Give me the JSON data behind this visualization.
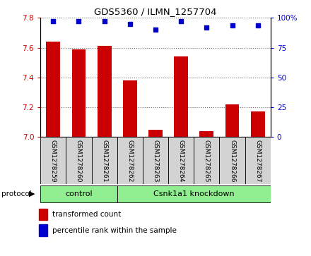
{
  "title": "GDS5360 / ILMN_1257704",
  "samples": [
    "GSM1278259",
    "GSM1278260",
    "GSM1278261",
    "GSM1278262",
    "GSM1278263",
    "GSM1278264",
    "GSM1278265",
    "GSM1278266",
    "GSM1278267"
  ],
  "transformed_counts": [
    7.64,
    7.59,
    7.61,
    7.38,
    7.05,
    7.54,
    7.04,
    7.22,
    7.17
  ],
  "percentile_ranks": [
    97,
    97,
    97,
    95,
    90,
    97,
    92,
    94,
    94
  ],
  "ylim_left": [
    7.0,
    7.8
  ],
  "ylim_right": [
    0,
    100
  ],
  "yticks_left": [
    7.0,
    7.2,
    7.4,
    7.6,
    7.8
  ],
  "yticks_right": [
    0,
    25,
    50,
    75,
    100
  ],
  "bar_color": "#cc0000",
  "scatter_color": "#0000cc",
  "bar_width": 0.55,
  "control_count": 3,
  "knockdown_count": 6,
  "legend_bar_label": "transformed count",
  "legend_scatter_label": "percentile rank within the sample",
  "left_tick_color": "#cc0000",
  "right_tick_color": "#0000cc",
  "grid_linestyle": ":",
  "sample_box_color": "#d3d3d3",
  "proto_color": "#90ee90",
  "control_label": "control",
  "knockdown_label": "Csnk1a1 knockdown",
  "protocol_text": "protocol"
}
